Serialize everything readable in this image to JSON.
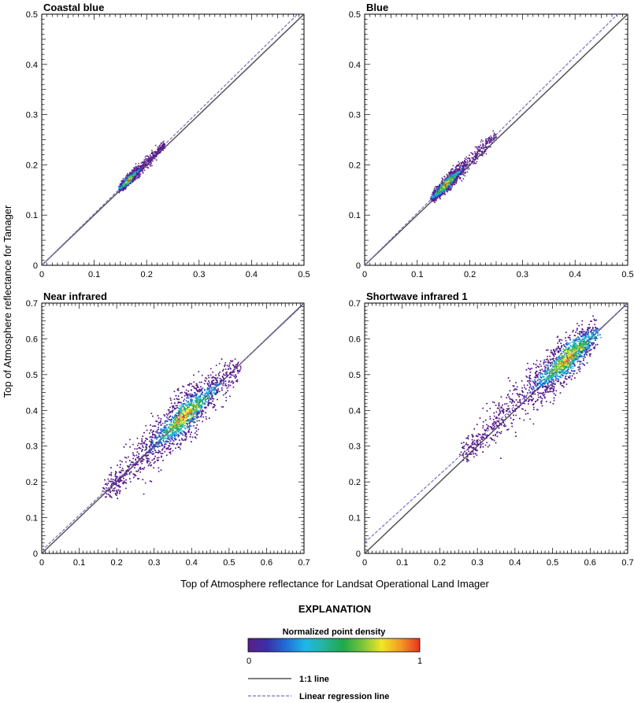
{
  "figure": {
    "shared_xlabel": "Top of Atmosphere reflectance for Landsat Operational Land Imager",
    "shared_ylabel": "Top of Atmosphere reflectance for Tanager"
  },
  "explanation": {
    "title": "EXPLANATION",
    "colorbar_title": "Normalized point density",
    "colorbar_min": "0",
    "colorbar_max": "1",
    "colorbar_colors": [
      "#5a1e8c",
      "#3b2fa8",
      "#1f6fd8",
      "#1fb7e8",
      "#23b59a",
      "#1fa84a",
      "#7ac43a",
      "#f2e626",
      "#f29a24",
      "#e8321e"
    ],
    "one_to_one_label": "1:1 line",
    "regression_label": "Linear regression line",
    "one_to_one_color": "#555555",
    "regression_color": "#7a6fc4"
  },
  "chart_data": [
    {
      "type": "scatter",
      "title": "Coastal blue",
      "xlim": [
        0,
        0.5
      ],
      "ylim": [
        0,
        0.5
      ],
      "xticks": [
        "0",
        "0.1",
        "0.2",
        "0.3",
        "0.4",
        "0.5"
      ],
      "yticks": [
        "0",
        "0.1",
        "0.2",
        "0.3",
        "0.4",
        "0.5"
      ],
      "one_to_one": [
        [
          0,
          0
        ],
        [
          0.5,
          0.5
        ]
      ],
      "regression": {
        "slope": 1.025,
        "intercept": 0.0
      },
      "cluster": {
        "x_range": [
          0.15,
          0.235
        ],
        "y_range": [
          0.155,
          0.25
        ],
        "peak": [
          0.165,
          0.17
        ]
      }
    },
    {
      "type": "scatter",
      "title": "Blue",
      "xlim": [
        0,
        0.5
      ],
      "ylim": [
        0,
        0.5
      ],
      "xticks": [
        "0",
        "0.1",
        "0.2",
        "0.3",
        "0.4",
        "0.5"
      ],
      "yticks": [
        "0",
        "0.1",
        "0.2",
        "0.3",
        "0.4",
        "0.5"
      ],
      "one_to_one": [
        [
          0,
          0
        ],
        [
          0.5,
          0.5
        ]
      ],
      "regression": {
        "slope": 1.04,
        "intercept": 0.0
      },
      "cluster": {
        "x_range": [
          0.13,
          0.25
        ],
        "y_range": [
          0.14,
          0.25
        ],
        "peak": [
          0.155,
          0.16
        ]
      }
    },
    {
      "type": "scatter",
      "title": "Near infrared",
      "xlim": [
        0,
        0.7
      ],
      "ylim": [
        0,
        0.7
      ],
      "xticks": [
        "0",
        "0.1",
        "0.2",
        "0.3",
        "0.4",
        "0.5",
        "0.6",
        "0.7"
      ],
      "yticks": [
        "0",
        "0.1",
        "0.2",
        "0.3",
        "0.4",
        "0.5",
        "0.6",
        "0.7"
      ],
      "one_to_one": [
        [
          0,
          0
        ],
        [
          0.7,
          0.7
        ]
      ],
      "regression": {
        "slope": 0.985,
        "intercept": 0.008
      },
      "cluster": {
        "x_range": [
          0.17,
          0.53
        ],
        "y_range": [
          0.17,
          0.53
        ],
        "peak": [
          0.38,
          0.375
        ]
      }
    },
    {
      "type": "scatter",
      "title": "Shortwave infrared 1",
      "xlim": [
        0,
        0.7
      ],
      "ylim": [
        0,
        0.7
      ],
      "xticks": [
        "0",
        "0.1",
        "0.2",
        "0.3",
        "0.4",
        "0.5",
        "0.6",
        "0.7"
      ],
      "yticks": [
        "0",
        "0.1",
        "0.2",
        "0.3",
        "0.4",
        "0.5",
        "0.6",
        "0.7"
      ],
      "one_to_one": [
        [
          0,
          0
        ],
        [
          0.7,
          0.7
        ]
      ],
      "regression": {
        "slope": 0.955,
        "intercept": 0.03
      },
      "cluster": {
        "x_range": [
          0.26,
          0.62
        ],
        "y_range": [
          0.27,
          0.62
        ],
        "peak": [
          0.54,
          0.545
        ]
      }
    }
  ]
}
